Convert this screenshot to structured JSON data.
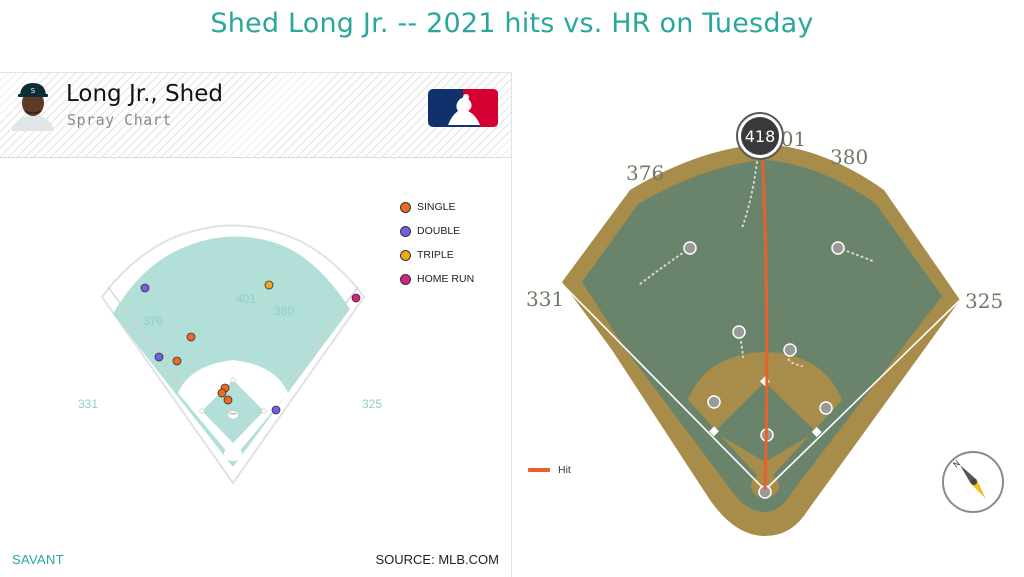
{
  "title": "Shed Long Jr. -- 2021 hits vs. HR on Tuesday",
  "player": {
    "name": "Long Jr., Shed",
    "chart_label": "Spray Chart"
  },
  "footer": {
    "left": "SAVANT",
    "right": "SOURCE: MLB.COM"
  },
  "legend": [
    {
      "label": "SINGLE",
      "color": "#ef6a1f"
    },
    {
      "label": "DOUBLE",
      "color": "#7b5ce0"
    },
    {
      "label": "TRIPLE",
      "color": "#f0a81e"
    },
    {
      "label": "HOME RUN",
      "color": "#d8237e"
    }
  ],
  "spray_distances": {
    "left": "331",
    "left_center": "376",
    "center": "401",
    "right_center": "380",
    "right": "325"
  },
  "field_distances": {
    "left": "331",
    "left_center": "376",
    "center": "401",
    "right_center": "380",
    "right": "325"
  },
  "home_run": {
    "distance": "418"
  },
  "hit_legend": {
    "label": "Hit",
    "color": "#e8602c"
  },
  "icons": {
    "compass": "compass-icon",
    "logo": "mlb-logo",
    "avatar": "player-avatar"
  }
}
